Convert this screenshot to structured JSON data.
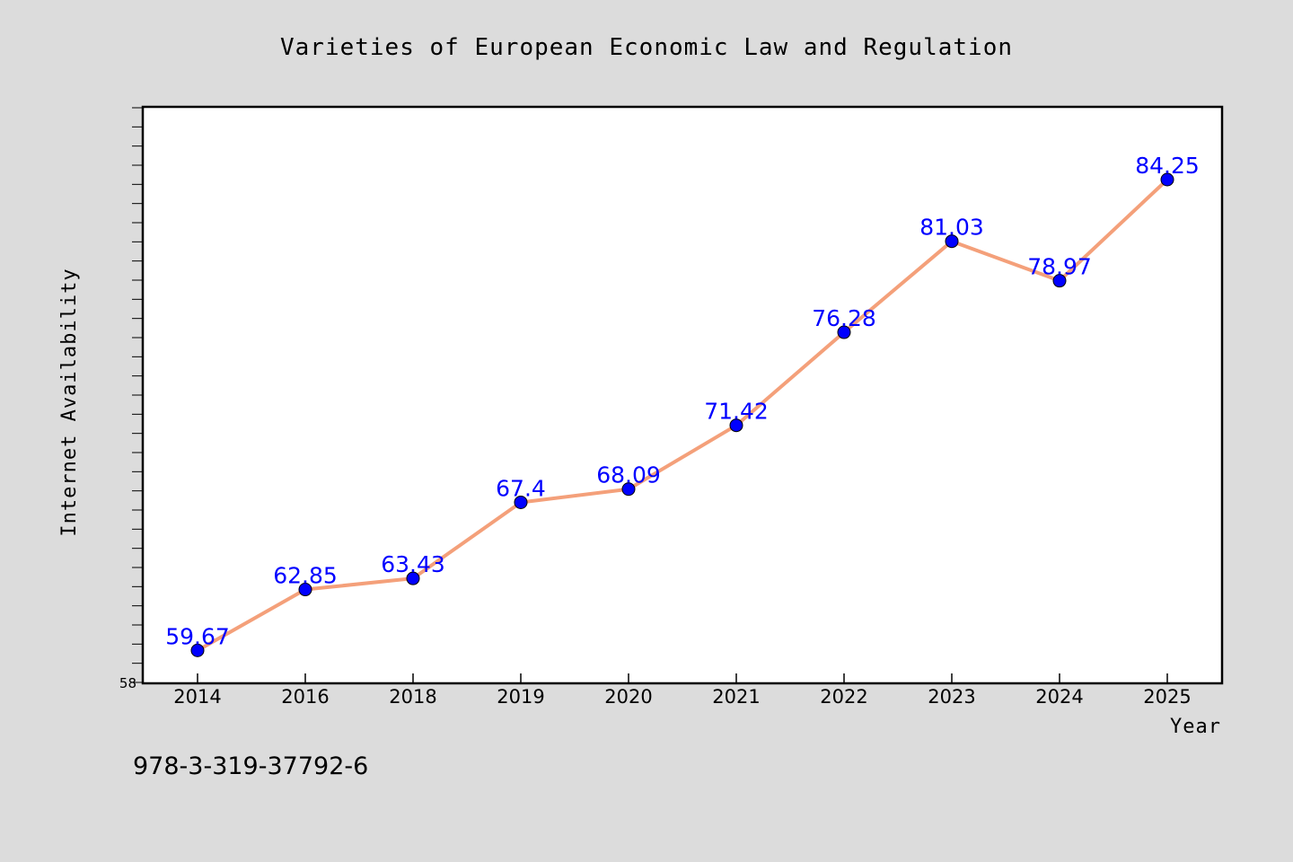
{
  "footer_text": "978-3-319-37792-6",
  "colors": {
    "background": "#dcdcdc",
    "plot_background": "#ffffff",
    "line": "#f4a07a",
    "marker": "#0000ff",
    "data_label": "#0000ff"
  },
  "chart_data": {
    "type": "line",
    "title": "Varieties of European Economic Law and Regulation",
    "xlabel": "Year",
    "ylabel": "Internet Availability",
    "categories": [
      "2014",
      "2016",
      "2018",
      "2019",
      "2020",
      "2021",
      "2022",
      "2023",
      "2024",
      "2025"
    ],
    "values": [
      59.67,
      62.85,
      63.43,
      67.4,
      68.09,
      71.42,
      76.28,
      81.03,
      78.97,
      84.25
    ],
    "data_labels": [
      "59.67",
      "62.85",
      "63.43",
      "67.4",
      "68.09",
      "71.42",
      "76.28",
      "81.03",
      "78.97",
      "84.25"
    ],
    "ylim": [
      58,
      88
    ],
    "y_tick_labels": [
      "58"
    ],
    "grid": false,
    "legend": "none"
  }
}
